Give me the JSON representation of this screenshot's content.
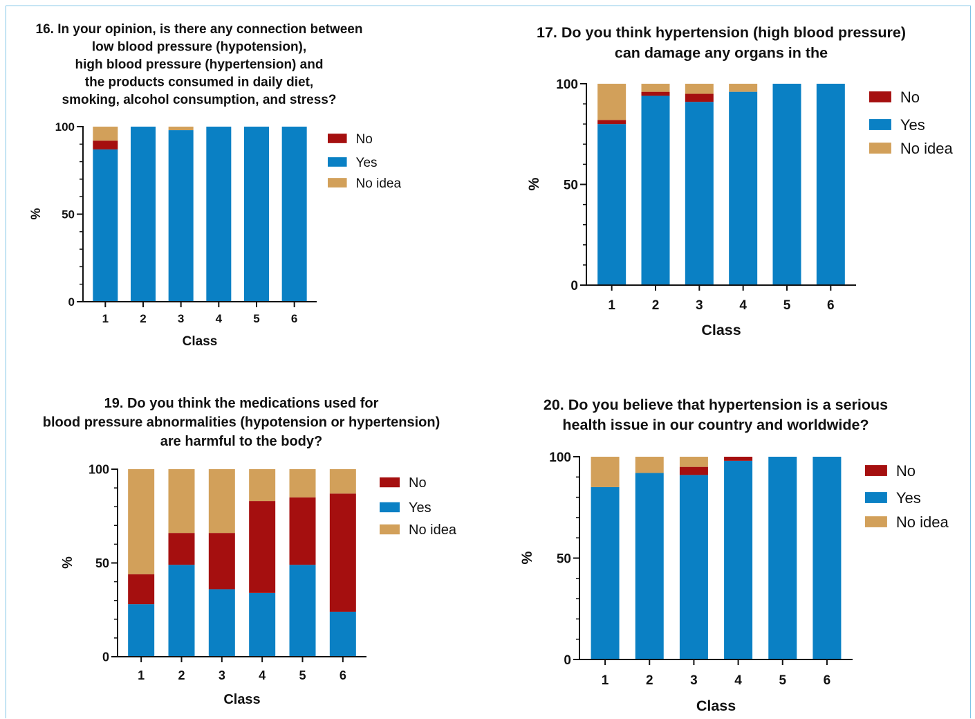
{
  "colors": {
    "No": "#a50f0f",
    "Yes": "#0a80c4",
    "No idea": "#d2a05a"
  },
  "chart_data": [
    {
      "type": "bar",
      "stacked": true,
      "title": "16. In your opinion, is there any connection between\nlow blood pressure (hypotension),\nhigh blood pressure (hypertension) and\nthe products consumed in daily diet,\nsmoking, alcohol consumption, and stress?",
      "xlabel": "Class",
      "ylabel": "%",
      "ylim": [
        0,
        100
      ],
      "yticks": [
        0,
        50,
        100
      ],
      "categories": [
        "1",
        "2",
        "3",
        "4",
        "5",
        "6"
      ],
      "legend": [
        "No",
        "Yes",
        "No idea"
      ],
      "legend_position": "right",
      "series": [
        {
          "name": "Yes",
          "values": [
            87,
            100,
            98,
            100,
            100,
            100
          ]
        },
        {
          "name": "No",
          "values": [
            5,
            0,
            0,
            0,
            0,
            0
          ]
        },
        {
          "name": "No idea",
          "values": [
            8,
            0,
            2,
            0,
            0,
            0
          ]
        }
      ]
    },
    {
      "type": "bar",
      "stacked": true,
      "title": "17. Do you think hypertension (high blood pressure)\ncan damage any organs in the",
      "xlabel": "Class",
      "ylabel": "%",
      "ylim": [
        0,
        100
      ],
      "yticks": [
        0,
        50,
        100
      ],
      "categories": [
        "1",
        "2",
        "3",
        "4",
        "5",
        "6"
      ],
      "legend": [
        "No",
        "Yes",
        "No idea"
      ],
      "legend_position": "right",
      "series": [
        {
          "name": "Yes",
          "values": [
            80,
            94,
            91,
            96,
            100,
            100
          ]
        },
        {
          "name": "No",
          "values": [
            2,
            2,
            4,
            0,
            0,
            0
          ]
        },
        {
          "name": "No idea",
          "values": [
            18,
            4,
            5,
            4,
            0,
            0
          ]
        }
      ]
    },
    {
      "type": "bar",
      "stacked": true,
      "title": "19. Do you think the medications used for\nblood pressure abnormalities (hypotension or hypertension)\nare harmful to the body?",
      "xlabel": "Class",
      "ylabel": "%",
      "ylim": [
        0,
        100
      ],
      "yticks": [
        0,
        50,
        100
      ],
      "categories": [
        "1",
        "2",
        "3",
        "4",
        "5",
        "6"
      ],
      "legend": [
        "No",
        "Yes",
        "No idea"
      ],
      "legend_position": "right",
      "series": [
        {
          "name": "Yes",
          "values": [
            28,
            49,
            36,
            34,
            49,
            24
          ]
        },
        {
          "name": "No",
          "values": [
            16,
            17,
            30,
            49,
            36,
            63
          ]
        },
        {
          "name": "No idea",
          "values": [
            56,
            34,
            34,
            17,
            15,
            13
          ]
        }
      ]
    },
    {
      "type": "bar",
      "stacked": true,
      "title": "20. Do you believe that hypertension is a serious\nhealth issue in our country and worldwide?",
      "xlabel": "Class",
      "ylabel": "%",
      "ylim": [
        0,
        100
      ],
      "yticks": [
        0,
        50,
        100
      ],
      "categories": [
        "1",
        "2",
        "3",
        "4",
        "5",
        "6"
      ],
      "legend": [
        "No",
        "Yes",
        "No idea"
      ],
      "legend_position": "right",
      "series": [
        {
          "name": "Yes",
          "values": [
            85,
            92,
            91,
            98,
            100,
            100
          ]
        },
        {
          "name": "No",
          "values": [
            0,
            0,
            4,
            2,
            0,
            0
          ]
        },
        {
          "name": "No idea",
          "values": [
            15,
            8,
            5,
            0,
            0,
            0
          ]
        }
      ]
    }
  ]
}
